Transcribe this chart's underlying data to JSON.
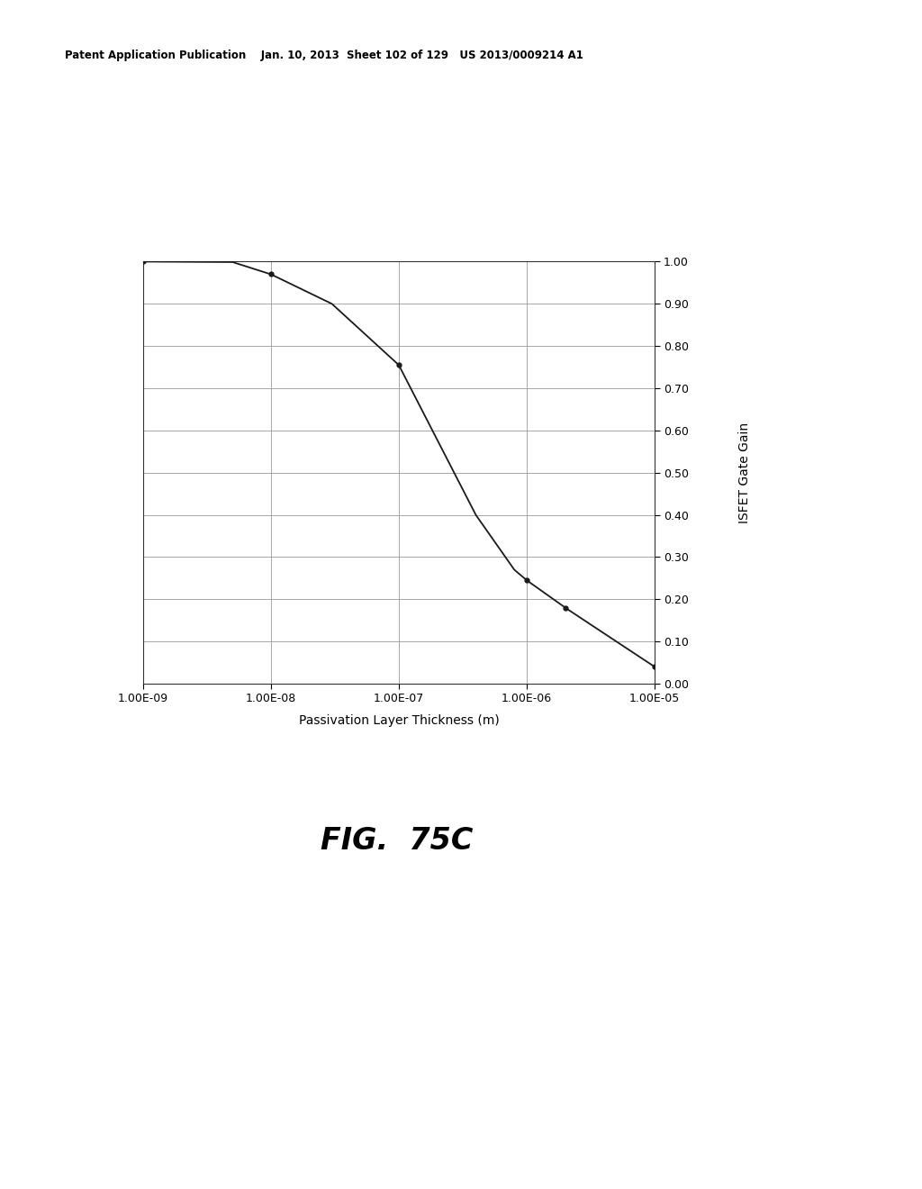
{
  "title": "FIG.  75C",
  "xlabel": "Passivation Layer Thickness (m)",
  "ylabel": "ISFET Gate Gain",
  "header_text": "Patent Application Publication    Jan. 10, 2013  Sheet 102 of 129   US 2013/0009214 A1",
  "x_data": [
    1e-09,
    5e-09,
    1e-08,
    3e-08,
    1e-07,
    4e-07,
    8e-07,
    1e-06,
    2e-06,
    1e-05
  ],
  "y_data": [
    1.0,
    0.999,
    0.97,
    0.9,
    0.755,
    0.4,
    0.27,
    0.245,
    0.18,
    0.04
  ],
  "xlim_log": [
    -9,
    -5
  ],
  "ylim": [
    0.0,
    1.0
  ],
  "yticks": [
    0.0,
    0.1,
    0.2,
    0.3,
    0.4,
    0.5,
    0.6,
    0.7,
    0.8,
    0.9,
    1.0
  ],
  "xtick_labels": [
    "1.00E-09",
    "1.00E-08",
    "1.00E-07",
    "1.00E-06",
    "1.00E-05"
  ],
  "line_color": "#1a1a1a",
  "grid_color": "#999999",
  "background_color": "#ffffff",
  "marker_points_x": [
    1e-09,
    1e-08,
    1e-07,
    1e-06,
    2e-06,
    1e-05
  ],
  "marker_points_y": [
    1.0,
    0.97,
    0.755,
    0.245,
    0.18,
    0.04
  ]
}
